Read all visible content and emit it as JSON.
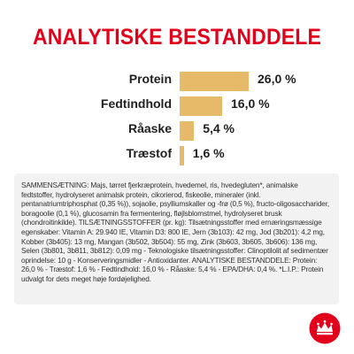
{
  "title": "ANALYTISKE BESTANDDELE",
  "chart_data": {
    "type": "bar",
    "orientation": "horizontal",
    "categories": [
      "Protein",
      "Fedtindhold",
      "Råaske",
      "Træstof"
    ],
    "values": [
      26.0,
      16.0,
      5.4,
      1.6
    ],
    "value_labels": [
      "26,0 %",
      "16,0 %",
      "5,4 %",
      "1,6 %"
    ],
    "bar_color": "#e7ba6a"
  },
  "composition_text": "SAMMENSÆTNING: Majs, tørret fjerkræprotein, hvedemel, ris, hvedegluten*, animalske fedtstoffer, hydrolyseret animalsk protein, cikorierod, fiskeolie, mineraler (inkl. pentanatriumtriphosphat (0,35 %)), sojaolie, psylliumskaller og -frø (0,5 %), fructo-oligosaccharider, boragoolie (0,1 %), glucosamin fra fermentering, fløjlsblomstmel, hydrolyseret brusk (chondroitinkilde). TILSÆTNINGSSTOFFER (pr. kg): Tilsætningsstoffer med ernæringsmæssige egenskaber: Vitamin A: 29.940 IE, Vitamin D3: 800 IE, Jern (3b103): 42 mg, Jod (3b201): 4,2 mg, Kobber (3b405): 13 mg, Mangan (3b502, 3b504): 55 mg, Zink (3b603, 3b605, 3b606): 136 mg, Selen (3b801, 3b811, 3b812): 0,09 mg - Teknologiske tilsætningsstoffer: Clinoptilolit af sedimentær oprindelse: 10 g - Konserveringsmidler - Antioxidanter. ANALYTISKE BESTANDDELE: Protein: 26,0 % - Træstof: 1,6 % - Fedtindhold: 16,0 % - Råaske: 5,4 % - EPA/DHA: 0,4 %. *L.I.P.: Protein udvalgt for dets meget høje fordøjelighed.",
  "logo": {
    "name": "royal-canin-crown-logo",
    "color": "#e3001b"
  }
}
